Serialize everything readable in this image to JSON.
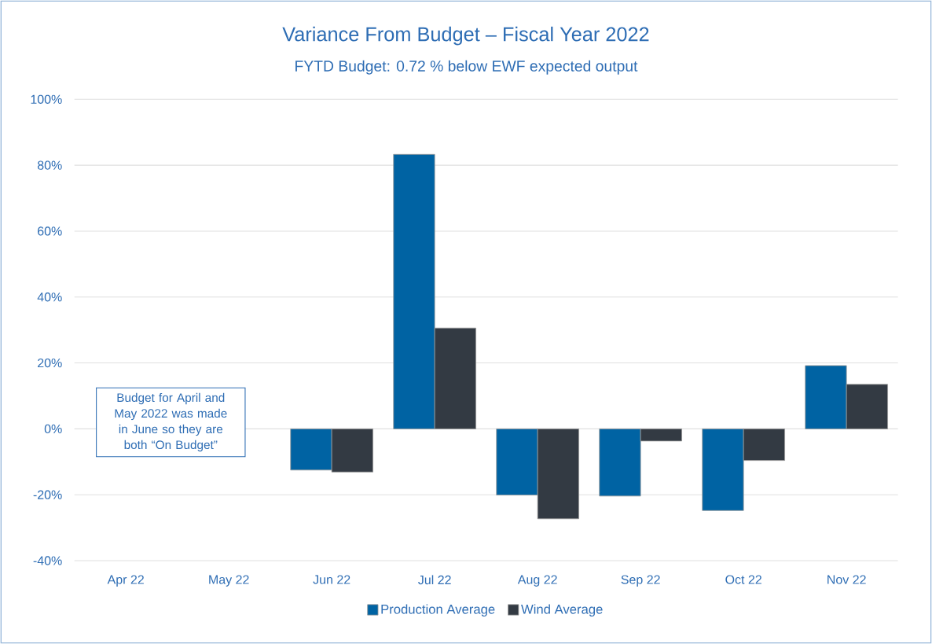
{
  "chart_data": {
    "type": "bar",
    "title": "Variance From Budget – Fiscal Year 2022",
    "subtitle": "FYTD Budget: 0.72 % below EWF expected output",
    "categories": [
      "Apr 22",
      "May 22",
      "Jun 22",
      "Jul 22",
      "Aug 22",
      "Sep 22",
      "Oct 22",
      "Nov 22"
    ],
    "series": [
      {
        "name": "Production Average",
        "color": "#0063a3",
        "values": [
          null,
          null,
          -12.5,
          83.3,
          -20.1,
          -20.4,
          -24.8,
          19.2
        ]
      },
      {
        "name": "Wind Average",
        "color": "#333a43",
        "values": [
          null,
          null,
          -13.1,
          30.6,
          -27.3,
          -3.7,
          -9.6,
          13.5
        ]
      }
    ],
    "ylim": [
      -40,
      100
    ],
    "yticks": [
      {
        "value": -40,
        "label": "-40%"
      },
      {
        "value": -20,
        "label": "-20%"
      },
      {
        "value": 0,
        "label": "0%"
      },
      {
        "value": 20,
        "label": "20%"
      },
      {
        "value": 40,
        "label": "40%"
      },
      {
        "value": 60,
        "label": "60%"
      },
      {
        "value": 80,
        "label": "80%"
      },
      {
        "value": 100,
        "label": "100%"
      }
    ],
    "grid": "y",
    "legend": "bottom",
    "annotations": [
      "Budget for April and May 2022 was made in June so they are both “On Budget”"
    ]
  }
}
